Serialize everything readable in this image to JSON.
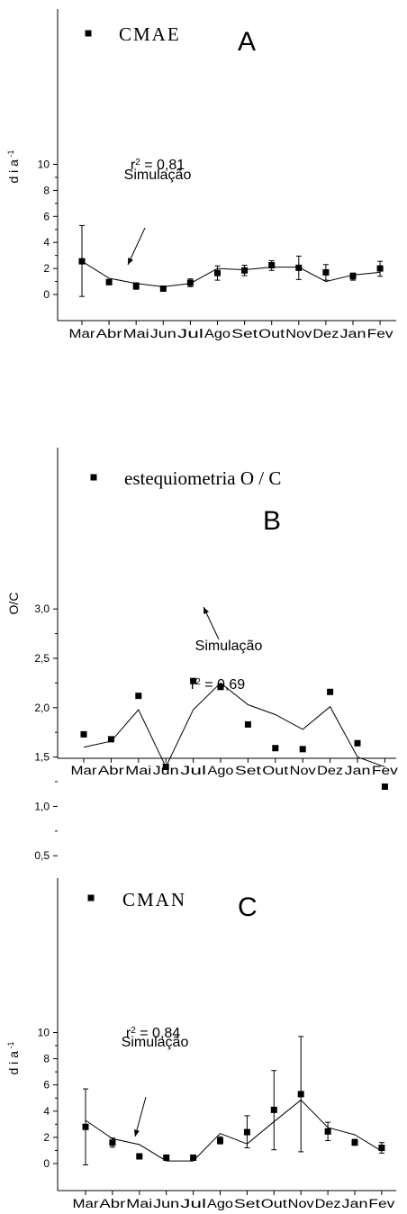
{
  "chart_data": [
    {
      "type": "scatter",
      "panel_label": "A",
      "ylabel": "d i a",
      "ylabel_sup": "-1",
      "ylim": [
        -0.6,
        10.9
      ],
      "yticks": [
        0,
        2,
        4,
        6,
        8,
        10
      ],
      "ytick_labels": [
        "0",
        "2",
        "4",
        "6",
        "8",
        "10"
      ],
      "categories": [
        "Mar",
        "Abr",
        "Mai",
        "Jun",
        "Jul",
        "Ago",
        "Set",
        "Out",
        "Nov",
        "Dez",
        "Jan",
        "Fev"
      ],
      "series": [
        {
          "name": "CMAE",
          "kind": "points",
          "values": [
            2.55,
            0.95,
            0.65,
            0.45,
            0.9,
            1.65,
            1.85,
            2.25,
            2.05,
            1.7,
            1.4,
            2.0
          ],
          "err_low": [
            -0.15,
            0.75,
            0.4,
            0.35,
            0.6,
            1.1,
            1.45,
            1.85,
            1.15,
            1.1,
            1.1,
            1.4
          ],
          "err_high": [
            5.3,
            1.15,
            0.9,
            0.55,
            1.2,
            2.2,
            2.25,
            2.6,
            2.95,
            2.3,
            1.65,
            2.55
          ]
        },
        {
          "kind": "line",
          "values": [
            2.55,
            1.25,
            0.85,
            0.6,
            0.85,
            2.0,
            1.9,
            2.1,
            2.1,
            1.0,
            1.5,
            1.7
          ]
        }
      ],
      "annotation": {
        "r2_label": "r",
        "r2_sup": "2",
        "r2_value": " = 0,81",
        "text": "Simulação"
      }
    },
    {
      "type": "scatter",
      "panel_label": "B",
      "ylabel": "O/C",
      "ylim": [
        0.35,
        3.3
      ],
      "yticks": [
        0.5,
        1.0,
        1.5,
        2.0,
        2.5,
        3.0
      ],
      "ytick_labels": [
        "0,5",
        "1,0",
        "1,5",
        "2,0",
        "2,5",
        "3,0"
      ],
      "categories": [
        "Mar",
        "Abr",
        "Mai",
        "Jun",
        "Jul",
        "Ago",
        "Set",
        "Out",
        "Nov",
        "Dez",
        "Jan",
        "Fev"
      ],
      "series": [
        {
          "name": "estequiometria O / C",
          "kind": "points",
          "values": [
            1.73,
            1.68,
            2.12,
            1.4,
            2.27,
            2.21,
            1.83,
            1.59,
            1.58,
            2.16,
            1.64,
            1.2
          ]
        },
        {
          "kind": "line",
          "values": [
            1.6,
            1.66,
            1.98,
            1.4,
            1.98,
            2.25,
            2.03,
            1.93,
            1.78,
            2.01,
            1.5,
            1.4
          ]
        }
      ],
      "annotation": {
        "text": "Simulação",
        "r2_label": "r",
        "r2_sup": "2",
        "r2_value": " = 0,69"
      }
    },
    {
      "type": "scatter",
      "panel_label": "C",
      "ylabel": "d i a",
      "ylabel_sup": "-1",
      "ylim": [
        -0.6,
        10.9
      ],
      "yticks": [
        0,
        2,
        4,
        6,
        8,
        10
      ],
      "ytick_labels": [
        "0",
        "2",
        "4",
        "6",
        "8",
        "10"
      ],
      "categories": [
        "Mar",
        "Abr",
        "Mai",
        "Jun",
        "Jul",
        "Ago",
        "Set",
        "Out",
        "Nov",
        "Dez",
        "Jan",
        "Fev"
      ],
      "series": [
        {
          "name": "CMAN",
          "kind": "points",
          "values": [
            2.8,
            1.6,
            0.55,
            0.45,
            0.45,
            1.75,
            2.4,
            4.1,
            5.3,
            2.45,
            1.6,
            1.2
          ],
          "err_low": [
            -0.1,
            1.25,
            0.45,
            0.35,
            0.35,
            1.5,
            1.2,
            1.05,
            0.9,
            1.75,
            1.4,
            0.8
          ],
          "err_high": [
            5.7,
            1.95,
            0.7,
            0.55,
            0.55,
            2.05,
            3.65,
            7.1,
            9.7,
            3.15,
            1.85,
            1.6
          ]
        },
        {
          "kind": "line",
          "values": [
            3.3,
            1.9,
            1.45,
            0.2,
            0.2,
            2.3,
            1.5,
            3.2,
            4.85,
            2.75,
            2.2,
            0.95
          ]
        }
      ],
      "annotation": {
        "r2_label": "r",
        "r2_sup": "2",
        "r2_value": " = 0,84",
        "text": "Simulação"
      }
    }
  ]
}
